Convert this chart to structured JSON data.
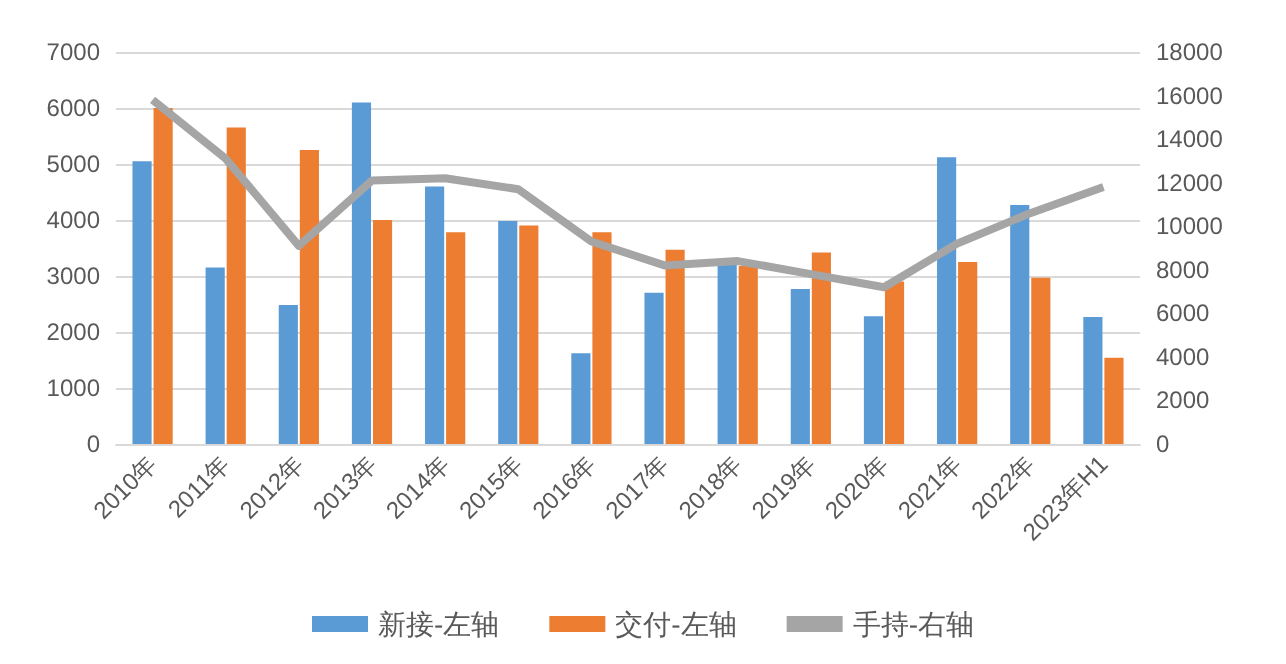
{
  "chart_data": {
    "type": "bar",
    "categories": [
      "2010年",
      "2011年",
      "2012年",
      "2013年",
      "2014年",
      "2015年",
      "2016年",
      "2017年",
      "2018年",
      "2019年",
      "2020年",
      "2021年",
      "2022年",
      "2023年H1"
    ],
    "series": [
      {
        "name": "新接-左轴",
        "color": "#5b9bd5",
        "values": [
          5050,
          3150,
          2480,
          6100,
          4600,
          3980,
          1620,
          2700,
          3230,
          2770,
          2280,
          5120,
          4270,
          2270
        ]
      },
      {
        "name": "交付-左轴",
        "color": "#ed7d31",
        "values": [
          6000,
          5650,
          5250,
          4000,
          3780,
          3900,
          3780,
          3470,
          3180,
          3420,
          2900,
          3250,
          2970,
          1540
        ]
      },
      {
        "name": "手持-右轴",
        "type": "line",
        "axis": "y2",
        "color": "#a5a5a5",
        "values": [
          15800,
          13100,
          9100,
          12100,
          12200,
          11700,
          9300,
          8200,
          8400,
          7800,
          7200,
          9200,
          10600,
          11800
        ]
      }
    ],
    "ylim": [
      0,
      7000
    ],
    "yticks": [
      0,
      1000,
      2000,
      3000,
      4000,
      5000,
      6000,
      7000
    ],
    "y2lim": [
      0,
      18000
    ],
    "y2ticks": [
      0,
      2000,
      4000,
      6000,
      8000,
      10000,
      12000,
      14000,
      16000,
      18000
    ],
    "grid": "y",
    "legend": "bottom",
    "marker": "none"
  }
}
